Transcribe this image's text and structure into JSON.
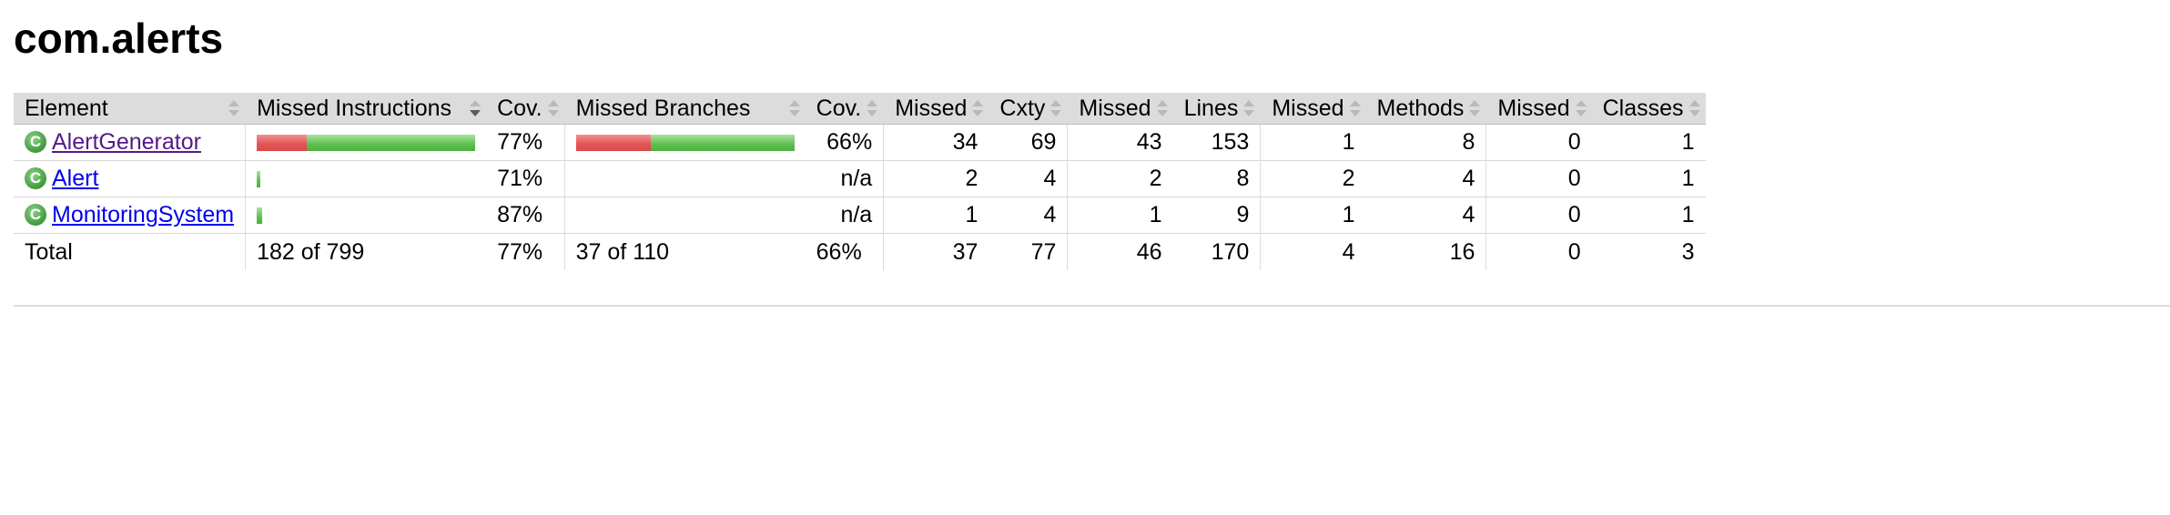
{
  "page": {
    "title": "com.alerts"
  },
  "table": {
    "headers": {
      "element": "Element",
      "missed_instructions": "Missed Instructions",
      "cov_instructions": "Cov.",
      "missed_branches": "Missed Branches",
      "cov_branches": "Cov.",
      "missed_cxty": "Missed",
      "cxty": "Cxty",
      "missed_lines": "Missed",
      "lines": "Lines",
      "missed_methods": "Missed",
      "methods": "Methods",
      "missed_classes": "Missed",
      "classes": "Classes"
    },
    "rows": [
      {
        "name": "AlertGenerator",
        "icon": "class-icon",
        "instructions_coverage_fraction": 0.77,
        "cov_instructions": "77%",
        "branches_coverage_fraction": 0.66,
        "cov_branches": "66%",
        "missed_cxty": "34",
        "cxty": "69",
        "missed_lines": "43",
        "lines": "153",
        "missed_methods": "1",
        "methods": "8",
        "missed_classes": "0",
        "classes": "1"
      },
      {
        "name": "Alert",
        "icon": "class-icon",
        "instructions_coverage_fraction": 0.71,
        "cov_instructions": "71%",
        "branches_coverage": "",
        "cov_branches": "n/a",
        "missed_cxty": "2",
        "cxty": "4",
        "missed_lines": "2",
        "lines": "8",
        "missed_methods": "2",
        "methods": "4",
        "missed_classes": "0",
        "classes": "1"
      },
      {
        "name": "MonitoringSystem",
        "icon": "class-icon",
        "instructions_coverage_fraction": 0.87,
        "cov_instructions": "87%",
        "branches_coverage": "",
        "cov_branches": "n/a",
        "missed_cxty": "1",
        "cxty": "4",
        "missed_lines": "1",
        "lines": "9",
        "missed_methods": "1",
        "methods": "4",
        "missed_classes": "0",
        "classes": "1"
      }
    ],
    "total": {
      "label": "Total",
      "missed_instructions": "182 of 799",
      "cov_instructions": "77%",
      "missed_branches": "37 of 110",
      "cov_branches": "66%",
      "missed_cxty": "37",
      "cxty": "77",
      "missed_lines": "46",
      "lines": "170",
      "missed_methods": "4",
      "methods": "16",
      "missed_classes": "0",
      "classes": "3"
    }
  },
  "colors": {
    "header_bg": "#dcdcdc",
    "bar_missed": "#e35353",
    "bar_covered": "#5cc04d",
    "link": "#0000ee",
    "link_visited": "#551a8b"
  }
}
